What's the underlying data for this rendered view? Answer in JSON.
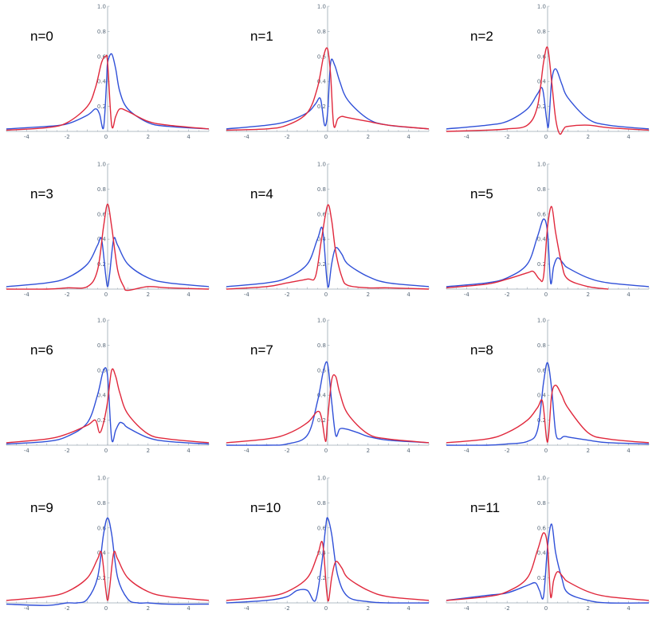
{
  "figure": {
    "colors": {
      "blue": "#3050d8",
      "red": "#e0283c",
      "axis": "#9aa7b2"
    },
    "x_ticks": [
      -4,
      -2,
      0,
      2,
      4
    ],
    "y_ticks": [
      0.2,
      0.4,
      0.6,
      0.8,
      1.0
    ],
    "y_tick_labels": [
      "0.2",
      "0.4",
      "0.6",
      "0.8",
      "1.0"
    ],
    "xlim": [
      -5,
      5
    ],
    "ylim": [
      0,
      1.0
    ]
  },
  "chart_data": [
    {
      "type": "line",
      "title": "n=0",
      "xlim": [
        -5,
        5
      ],
      "ylim": [
        0,
        1
      ],
      "series": [
        {
          "color": "#3050d8",
          "x": [
            -5,
            -3,
            -2,
            -1,
            -0.6,
            -0.4,
            -0.2,
            -0.05,
            0,
            0.2,
            0.4,
            0.6,
            1,
            2,
            3,
            5
          ],
          "y": [
            0.02,
            0.04,
            0.06,
            0.13,
            0.18,
            0.14,
            0.03,
            0.4,
            0.55,
            0.62,
            0.5,
            0.32,
            0.18,
            0.07,
            0.04,
            0.02
          ]
        },
        {
          "color": "#e0283c",
          "x": [
            -5,
            -3,
            -2,
            -1,
            -0.6,
            -0.3,
            -0.1,
            0,
            0.2,
            0.4,
            0.6,
            1,
            2,
            3,
            5
          ],
          "y": [
            0.01,
            0.03,
            0.07,
            0.2,
            0.35,
            0.55,
            0.6,
            0.55,
            0.05,
            0.12,
            0.18,
            0.16,
            0.08,
            0.05,
            0.02
          ]
        }
      ]
    },
    {
      "type": "line",
      "title": "n=1",
      "xlim": [
        -5,
        5
      ],
      "ylim": [
        0,
        1
      ],
      "series": [
        {
          "color": "#3050d8",
          "x": [
            -5,
            -3,
            -2,
            -1,
            -0.6,
            -0.35,
            -0.15,
            0,
            0.15,
            0.35,
            0.6,
            1,
            2,
            3,
            5
          ],
          "y": [
            0.02,
            0.05,
            0.08,
            0.15,
            0.22,
            0.26,
            0.05,
            0.15,
            0.55,
            0.53,
            0.4,
            0.25,
            0.1,
            0.05,
            0.02
          ]
        },
        {
          "color": "#e0283c",
          "x": [
            -5,
            -3,
            -2,
            -1,
            -0.5,
            -0.2,
            0,
            0.15,
            0.3,
            0.5,
            0.7,
            1,
            2,
            3,
            5
          ],
          "y": [
            0.01,
            0.02,
            0.05,
            0.15,
            0.35,
            0.6,
            0.66,
            0.45,
            0.05,
            0.1,
            0.12,
            0.11,
            0.08,
            0.05,
            0.02
          ]
        }
      ]
    },
    {
      "type": "line",
      "title": "n=2",
      "xlim": [
        -5,
        5
      ],
      "ylim": [
        0,
        1
      ],
      "series": [
        {
          "color": "#3050d8",
          "x": [
            -5,
            -3,
            -2,
            -1,
            -0.5,
            -0.25,
            -0.05,
            0.05,
            0.2,
            0.4,
            0.7,
            1,
            2,
            3,
            5
          ],
          "y": [
            0.02,
            0.05,
            0.08,
            0.18,
            0.3,
            0.34,
            0.1,
            0.05,
            0.4,
            0.5,
            0.38,
            0.27,
            0.1,
            0.05,
            0.02
          ]
        },
        {
          "color": "#e0283c",
          "x": [
            -5,
            -3,
            -2,
            -1,
            -0.5,
            -0.2,
            0,
            0.2,
            0.4,
            0.6,
            0.8,
            1,
            2,
            3,
            5
          ],
          "y": [
            0.0,
            0.01,
            0.02,
            0.05,
            0.2,
            0.55,
            0.67,
            0.4,
            0.1,
            -0.02,
            0.02,
            0.04,
            0.05,
            0.03,
            0.01
          ]
        }
      ]
    },
    {
      "type": "line",
      "title": "n=3",
      "xlim": [
        -5,
        5
      ],
      "ylim": [
        0,
        1
      ],
      "series": [
        {
          "color": "#3050d8",
          "x": [
            -5,
            -3,
            -2,
            -1,
            -0.5,
            -0.3,
            -0.1,
            0,
            0.1,
            0.3,
            0.5,
            1,
            2,
            3,
            5
          ],
          "y": [
            0.02,
            0.05,
            0.09,
            0.2,
            0.35,
            0.4,
            0.12,
            0.02,
            0.12,
            0.4,
            0.35,
            0.2,
            0.09,
            0.05,
            0.02
          ]
        },
        {
          "color": "#e0283c",
          "x": [
            -5,
            -3,
            -2,
            -1,
            -0.5,
            -0.2,
            0,
            0.2,
            0.5,
            0.8,
            1,
            2,
            3,
            5
          ],
          "y": [
            0.0,
            0.0,
            0.01,
            0.02,
            0.15,
            0.5,
            0.68,
            0.5,
            0.15,
            0.02,
            -0.01,
            0.02,
            0.01,
            0.0
          ]
        }
      ]
    },
    {
      "type": "line",
      "title": "n=4",
      "xlim": [
        -5,
        5
      ],
      "ylim": [
        0,
        1
      ],
      "series": [
        {
          "color": "#3050d8",
          "x": [
            -5,
            -3,
            -2,
            -1,
            -0.5,
            -0.25,
            -0.05,
            0.05,
            0.2,
            0.4,
            0.7,
            1,
            2,
            3,
            5
          ],
          "y": [
            0.02,
            0.05,
            0.09,
            0.2,
            0.4,
            0.48,
            0.1,
            0.02,
            0.2,
            0.33,
            0.28,
            0.2,
            0.1,
            0.05,
            0.02
          ]
        },
        {
          "color": "#e0283c",
          "x": [
            -5,
            -3,
            -2,
            -1,
            -0.6,
            -0.3,
            0,
            0.2,
            0.4,
            0.7,
            1,
            2,
            3,
            5
          ],
          "y": [
            0.0,
            0.02,
            0.05,
            0.08,
            0.1,
            0.4,
            0.67,
            0.55,
            0.3,
            0.1,
            0.03,
            0.01,
            0.01,
            0.0
          ]
        }
      ]
    },
    {
      "type": "line",
      "title": "n=5",
      "xlim": [
        -5,
        5
      ],
      "ylim": [
        0,
        1
      ],
      "series": [
        {
          "color": "#3050d8",
          "x": [
            -5,
            -3,
            -2,
            -1,
            -0.5,
            -0.2,
            0,
            0.15,
            0.3,
            0.5,
            0.8,
            1,
            2,
            3,
            5
          ],
          "y": [
            0.02,
            0.05,
            0.09,
            0.2,
            0.42,
            0.56,
            0.45,
            0.05,
            0.18,
            0.25,
            0.2,
            0.17,
            0.09,
            0.05,
            0.02
          ]
        },
        {
          "color": "#e0283c",
          "x": [
            -5,
            -3,
            -2,
            -1,
            -0.7,
            -0.4,
            -0.2,
            0,
            0.2,
            0.4,
            0.7,
            1,
            2,
            3
          ],
          "y": [
            0.01,
            0.04,
            0.08,
            0.13,
            0.14,
            0.08,
            0.1,
            0.5,
            0.66,
            0.45,
            0.2,
            0.08,
            0.02,
            0.0
          ]
        }
      ]
    },
    {
      "type": "line",
      "title": "n=6",
      "xlim": [
        -5,
        5
      ],
      "ylim": [
        0,
        1
      ],
      "series": [
        {
          "color": "#3050d8",
          "x": [
            -5,
            -3,
            -2,
            -1,
            -0.5,
            -0.2,
            0,
            0.2,
            0.4,
            0.6,
            0.8,
            1,
            2,
            3,
            5
          ],
          "y": [
            0.01,
            0.03,
            0.07,
            0.18,
            0.4,
            0.6,
            0.55,
            0.05,
            0.12,
            0.18,
            0.17,
            0.14,
            0.06,
            0.03,
            0.01
          ]
        },
        {
          "color": "#e0283c",
          "x": [
            -5,
            -3,
            -2,
            -1,
            -0.6,
            -0.4,
            -0.2,
            0,
            0.2,
            0.4,
            0.6,
            1,
            2,
            3,
            5
          ],
          "y": [
            0.02,
            0.05,
            0.09,
            0.16,
            0.2,
            0.1,
            0.18,
            0.35,
            0.6,
            0.55,
            0.42,
            0.25,
            0.09,
            0.05,
            0.02
          ]
        }
      ]
    },
    {
      "type": "line",
      "title": "n=7",
      "xlim": [
        -5,
        5
      ],
      "ylim": [
        0,
        1
      ],
      "series": [
        {
          "color": "#3050d8",
          "x": [
            -5,
            -3,
            -2,
            -1,
            -0.5,
            -0.2,
            0,
            0.2,
            0.4,
            0.6,
            0.9,
            1.5,
            2,
            3,
            5
          ],
          "y": [
            0.0,
            0.0,
            0.01,
            0.08,
            0.35,
            0.6,
            0.65,
            0.35,
            0.08,
            0.13,
            0.13,
            0.1,
            0.07,
            0.04,
            0.02
          ]
        },
        {
          "color": "#e0283c",
          "x": [
            -5,
            -3,
            -2,
            -1,
            -0.5,
            -0.3,
            -0.1,
            0,
            0.2,
            0.4,
            0.6,
            1,
            2,
            3,
            5
          ],
          "y": [
            0.02,
            0.05,
            0.09,
            0.18,
            0.27,
            0.22,
            0.03,
            0.2,
            0.52,
            0.55,
            0.42,
            0.25,
            0.09,
            0.05,
            0.02
          ]
        }
      ]
    },
    {
      "type": "line",
      "title": "n=8",
      "xlim": [
        -5,
        5
      ],
      "ylim": [
        0,
        1
      ],
      "series": [
        {
          "color": "#3050d8",
          "x": [
            -5,
            -3,
            -2,
            -1,
            -0.5,
            -0.2,
            0,
            0.2,
            0.4,
            0.6,
            0.8,
            1.2,
            2,
            3,
            5
          ],
          "y": [
            0.0,
            0.0,
            0.01,
            0.03,
            0.12,
            0.5,
            0.66,
            0.45,
            0.1,
            0.05,
            0.07,
            0.06,
            0.04,
            0.02,
            0.01
          ]
        },
        {
          "color": "#e0283c",
          "x": [
            -5,
            -3,
            -2,
            -1,
            -0.5,
            -0.25,
            -0.05,
            0.05,
            0.2,
            0.4,
            0.7,
            1,
            2,
            3,
            5
          ],
          "y": [
            0.02,
            0.05,
            0.1,
            0.2,
            0.3,
            0.35,
            0.05,
            0.08,
            0.4,
            0.48,
            0.4,
            0.3,
            0.1,
            0.05,
            0.02
          ]
        }
      ]
    },
    {
      "type": "line",
      "title": "n=9",
      "xlim": [
        -5,
        5
      ],
      "ylim": [
        0,
        1
      ],
      "series": [
        {
          "color": "#3050d8",
          "x": [
            -5,
            -3,
            -2,
            -1.5,
            -1,
            -0.5,
            -0.2,
            0,
            0.2,
            0.5,
            1,
            1.5,
            2,
            3,
            5
          ],
          "y": [
            -0.01,
            -0.02,
            0.0,
            0.0,
            0.03,
            0.2,
            0.55,
            0.68,
            0.55,
            0.2,
            0.03,
            0.0,
            0.0,
            -0.01,
            -0.01
          ]
        },
        {
          "color": "#e0283c",
          "x": [
            -5,
            -3,
            -2,
            -1,
            -0.5,
            -0.3,
            -0.1,
            0,
            0.1,
            0.3,
            0.5,
            1,
            2,
            3,
            5
          ],
          "y": [
            0.02,
            0.05,
            0.09,
            0.2,
            0.35,
            0.4,
            0.12,
            0.02,
            0.12,
            0.4,
            0.35,
            0.2,
            0.09,
            0.05,
            0.02
          ]
        }
      ]
    },
    {
      "type": "line",
      "title": "n=10",
      "xlim": [
        -5,
        5
      ],
      "ylim": [
        0,
        1
      ],
      "series": [
        {
          "color": "#3050d8",
          "x": [
            -5,
            -3,
            -2,
            -1.5,
            -1,
            -0.6,
            -0.3,
            -0.1,
            0,
            0.2,
            0.5,
            1,
            2,
            3,
            5
          ],
          "y": [
            0.0,
            0.02,
            0.05,
            0.1,
            0.1,
            0.02,
            0.3,
            0.6,
            0.68,
            0.55,
            0.22,
            0.05,
            0.01,
            0.0,
            0.0
          ]
        },
        {
          "color": "#e0283c",
          "x": [
            -5,
            -3,
            -2,
            -1,
            -0.5,
            -0.25,
            -0.05,
            0.05,
            0.2,
            0.4,
            0.7,
            1,
            2,
            3,
            5
          ],
          "y": [
            0.02,
            0.05,
            0.09,
            0.2,
            0.38,
            0.48,
            0.1,
            0.02,
            0.2,
            0.33,
            0.28,
            0.2,
            0.1,
            0.05,
            0.02
          ]
        }
      ]
    },
    {
      "type": "line",
      "title": "n=11",
      "xlim": [
        -5,
        5
      ],
      "ylim": [
        0,
        1
      ],
      "series": [
        {
          "color": "#3050d8",
          "x": [
            -5,
            -3,
            -2,
            -1,
            -0.6,
            -0.4,
            -0.2,
            0,
            0.2,
            0.4,
            0.7,
            1,
            2,
            3,
            5
          ],
          "y": [
            0.02,
            0.06,
            0.08,
            0.14,
            0.16,
            0.1,
            0.05,
            0.45,
            0.63,
            0.4,
            0.2,
            0.08,
            0.02,
            0.0,
            0.0
          ]
        },
        {
          "color": "#e0283c",
          "x": [
            -5,
            -3,
            -2,
            -1,
            -0.5,
            -0.2,
            0,
            0.15,
            0.3,
            0.5,
            0.8,
            1,
            2,
            3,
            5
          ],
          "y": [
            0.02,
            0.05,
            0.09,
            0.2,
            0.42,
            0.56,
            0.45,
            0.05,
            0.18,
            0.25,
            0.2,
            0.17,
            0.09,
            0.05,
            0.02
          ]
        }
      ]
    }
  ]
}
